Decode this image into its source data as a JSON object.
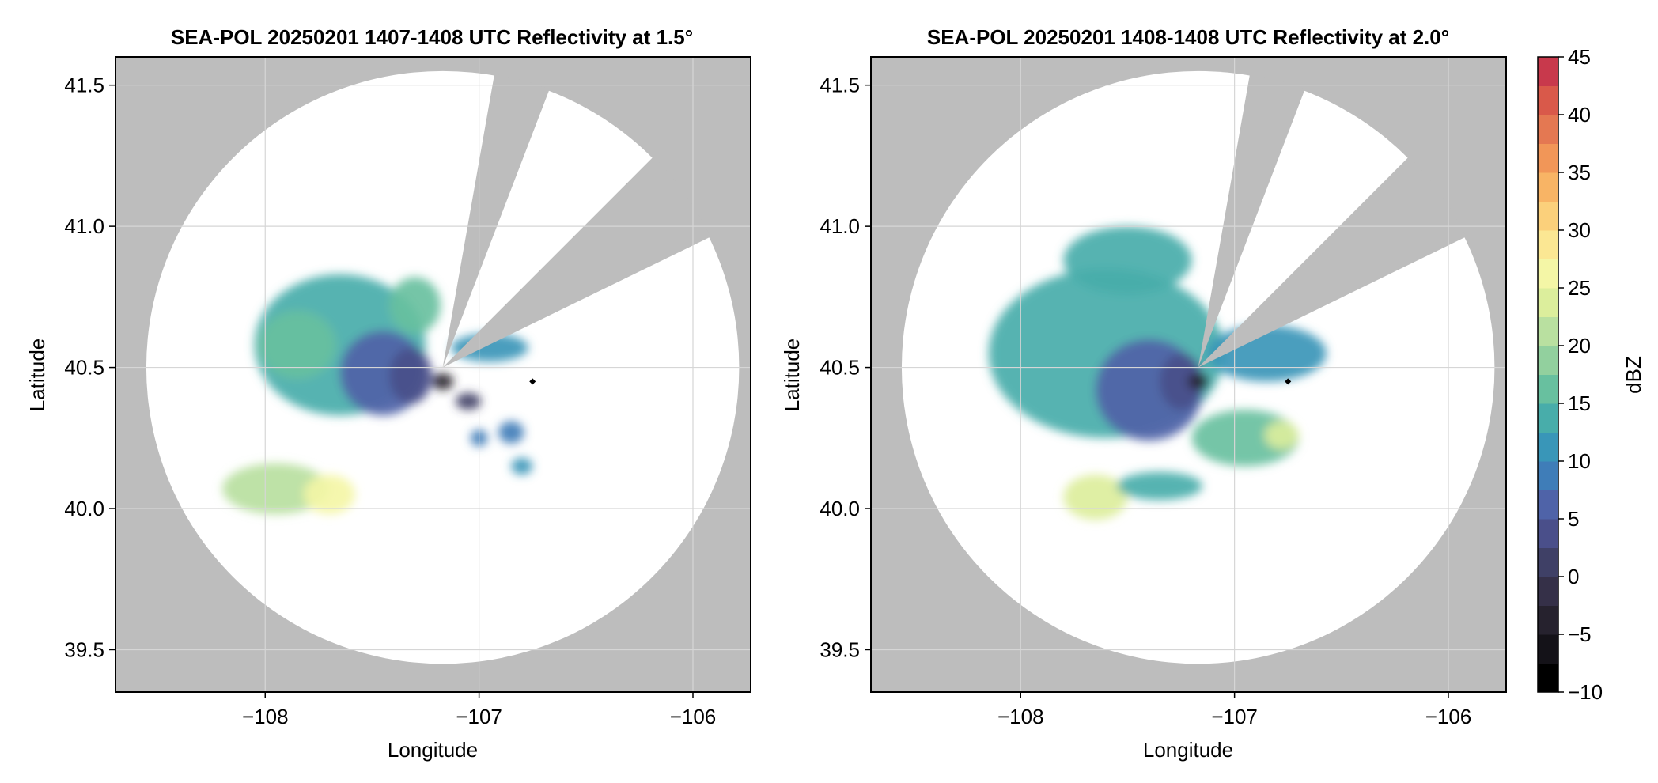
{
  "figure": {
    "colorbar_label": "dBZ",
    "colors": {
      "background": "#ffffff",
      "no_coverage": "#bdbdbd",
      "grid": "#d6d6d6",
      "site_marker": "#000000"
    }
  },
  "chart_data": [
    {
      "type": "heatmap",
      "title": "SEA-POL 20250201 1407-1408 UTC Reflectivity at 1.5°",
      "xlabel": "Longitude",
      "ylabel": "Latitude",
      "xlim": [
        -108.7,
        -105.73
      ],
      "ylim": [
        39.35,
        41.6
      ],
      "xticks": [
        -108,
        -107,
        -106
      ],
      "xtick_labels": [
        "−108",
        "−107",
        "−106"
      ],
      "yticks": [
        39.5,
        40.0,
        40.5,
        41.0,
        41.5
      ],
      "ytick_labels": [
        "39.5",
        "40.0",
        "40.5",
        "41.0",
        "41.5"
      ],
      "grid": true,
      "radar_center": [
        -107.17,
        40.5
      ],
      "range_ring_radius_deg_lat": 1.05,
      "blocked_sectors_deg_from_north": [
        [
          10,
          21
        ],
        [
          45,
          64
        ]
      ],
      "site_marker": [
        -106.75,
        40.45
      ],
      "echoes": [
        {
          "region": "main",
          "lon": -107.65,
          "lat": 40.58,
          "rlon": 0.4,
          "rlat": 0.25,
          "value": 13
        },
        {
          "region": "main",
          "lon": -107.45,
          "lat": 40.48,
          "rlon": 0.2,
          "rlat": 0.15,
          "value": 7
        },
        {
          "region": "main",
          "lon": -107.32,
          "lat": 40.47,
          "rlon": 0.1,
          "rlat": 0.1,
          "value": 3
        },
        {
          "region": "main",
          "lon": -107.3,
          "lat": 40.72,
          "rlon": 0.12,
          "rlat": 0.1,
          "value": 17
        },
        {
          "region": "main",
          "lon": -107.85,
          "lat": 40.58,
          "rlon": 0.18,
          "rlat": 0.12,
          "value": 15
        },
        {
          "region": "southwest cell",
          "lon": -107.95,
          "lat": 40.07,
          "rlon": 0.25,
          "rlat": 0.09,
          "value": 20
        },
        {
          "region": "southwest cell",
          "lon": -107.7,
          "lat": 40.05,
          "rlon": 0.12,
          "rlat": 0.07,
          "value": 27
        },
        {
          "region": "east streak",
          "lon": -106.95,
          "lat": 40.57,
          "rlon": 0.18,
          "rlat": 0.05,
          "value": 10
        },
        {
          "region": "southeast",
          "lon": -106.85,
          "lat": 40.27,
          "rlon": 0.06,
          "rlat": 0.04,
          "value": 9
        },
        {
          "region": "southeast",
          "lon": -107.0,
          "lat": 40.25,
          "rlon": 0.04,
          "rlat": 0.03,
          "value": 8
        },
        {
          "region": "southeast",
          "lon": -106.8,
          "lat": 40.15,
          "rlon": 0.05,
          "rlat": 0.03,
          "value": 10
        },
        {
          "region": "near radar",
          "lon": -107.17,
          "lat": 40.45,
          "rlon": 0.05,
          "rlat": 0.03,
          "value": -5
        },
        {
          "region": "near radar",
          "lon": -107.05,
          "lat": 40.38,
          "rlon": 0.06,
          "rlat": 0.03,
          "value": 2
        }
      ]
    },
    {
      "type": "heatmap",
      "title": "SEA-POL 20250201 1408-1408 UTC Reflectivity at 2.0°",
      "xlabel": "Longitude",
      "ylabel": "Latitude",
      "xlim": [
        -108.7,
        -105.73
      ],
      "ylim": [
        39.35,
        41.6
      ],
      "xticks": [
        -108,
        -107,
        -106
      ],
      "xtick_labels": [
        "−108",
        "−107",
        "−106"
      ],
      "yticks": [
        39.5,
        40.0,
        40.5,
        41.0,
        41.5
      ],
      "ytick_labels": [
        "39.5",
        "40.0",
        "40.5",
        "41.0",
        "41.5"
      ],
      "grid": true,
      "radar_center": [
        -107.17,
        40.5
      ],
      "range_ring_radius_deg_lat": 1.05,
      "blocked_sectors_deg_from_north": [
        [
          10,
          21
        ],
        [
          45,
          64
        ]
      ],
      "site_marker": [
        -106.75,
        40.45
      ],
      "echoes": [
        {
          "region": "main",
          "lon": -107.6,
          "lat": 40.55,
          "rlon": 0.55,
          "rlat": 0.3,
          "value": 14
        },
        {
          "region": "main",
          "lon": -107.4,
          "lat": 40.42,
          "rlon": 0.25,
          "rlat": 0.18,
          "value": 7
        },
        {
          "region": "main",
          "lon": -107.25,
          "lat": 40.45,
          "rlon": 0.1,
          "rlat": 0.1,
          "value": 3
        },
        {
          "region": "north",
          "lon": -107.5,
          "lat": 40.88,
          "rlon": 0.3,
          "rlat": 0.12,
          "value": 14
        },
        {
          "region": "east",
          "lon": -106.85,
          "lat": 40.55,
          "rlon": 0.28,
          "rlat": 0.1,
          "value": 11
        },
        {
          "region": "southeast band",
          "lon": -106.95,
          "lat": 40.25,
          "rlon": 0.25,
          "rlat": 0.1,
          "value": 15
        },
        {
          "region": "southeast band",
          "lon": -106.78,
          "lat": 40.26,
          "rlon": 0.08,
          "rlat": 0.05,
          "value": 23
        },
        {
          "region": "southwest cell",
          "lon": -107.65,
          "lat": 40.04,
          "rlon": 0.15,
          "rlat": 0.08,
          "value": 24
        },
        {
          "region": "south",
          "lon": -107.35,
          "lat": 40.08,
          "rlon": 0.2,
          "rlat": 0.05,
          "value": 13
        },
        {
          "region": "near radar",
          "lon": -107.17,
          "lat": 40.45,
          "rlon": 0.05,
          "rlat": 0.03,
          "value": -4
        }
      ]
    }
  ],
  "colorbar": {
    "min": -10,
    "max": 45,
    "step": 2.5,
    "ticks": [
      -10,
      -5,
      0,
      5,
      10,
      15,
      20,
      25,
      30,
      35,
      40,
      45
    ],
    "tick_labels": [
      "−10",
      "−5",
      "0",
      "5",
      "10",
      "15",
      "20",
      "25",
      "30",
      "35",
      "40",
      "45"
    ],
    "colors": [
      "#000000",
      "#141218",
      "#26222e",
      "#353048",
      "#3f4066",
      "#4a4f8a",
      "#4f63a8",
      "#3f7db8",
      "#3996b8",
      "#48adaa",
      "#68c09f",
      "#92d09e",
      "#b9e0a0",
      "#dcee9c",
      "#f4f6a6",
      "#fbe793",
      "#fbd07b",
      "#f8b465",
      "#f19658",
      "#e47852",
      "#d9594a",
      "#c8394c",
      "#b01f4c",
      "#cc3e78",
      "#e06a9e",
      "#ee97c2",
      "#f3bfdd",
      "#c0a0d0",
      "#9a76b8",
      "#7a50a0",
      "#5d2c82",
      "#431060"
    ]
  }
}
